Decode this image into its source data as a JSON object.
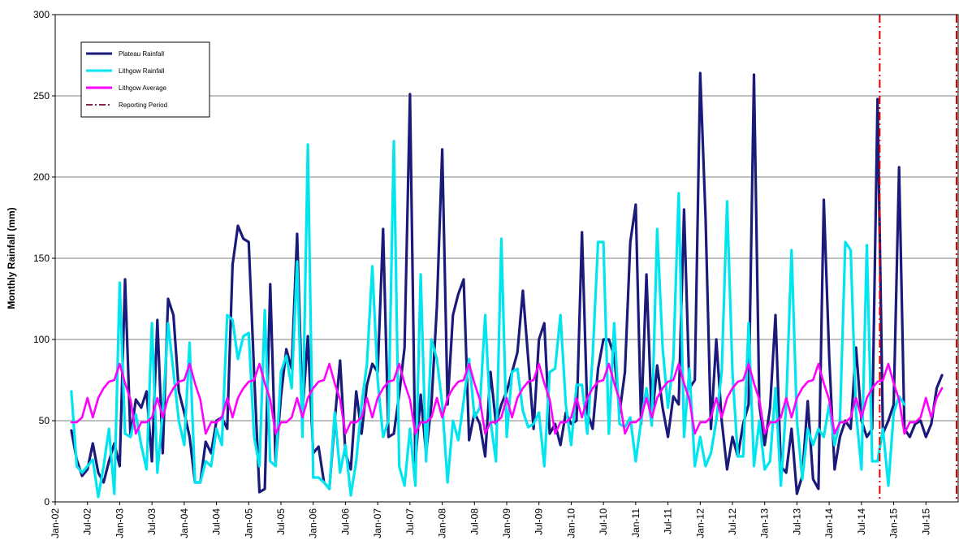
{
  "chart_data": {
    "type": "line",
    "title": "",
    "xlabel": "",
    "ylabel": "Monthly Rainfall (mm)",
    "ylim": [
      0,
      300
    ],
    "y_ticks": [
      0,
      50,
      100,
      150,
      200,
      250,
      300
    ],
    "x_tick_labels": [
      "Jan-02",
      "Jul-02",
      "Jan-03",
      "Jul-03",
      "Jan-04",
      "Jul-04",
      "Jan-05",
      "Jul-05",
      "Jan-06",
      "Jul-06",
      "Jan-07",
      "Jul-07",
      "Jan-08",
      "Jul-08",
      "Jan-09",
      "Jul-09",
      "Jan-10",
      "Jul-10",
      "Jan-11",
      "Jul-11",
      "Jan-12",
      "Jul-12",
      "Jan-13",
      "Jul-13",
      "Jan-14",
      "Jul-14",
      "Jan-15",
      "Jul-15"
    ],
    "x_start_month": "2002-01",
    "x_end_month": "2015-12",
    "grid": "horizontal",
    "legend_position": "top-left",
    "legend": [
      {
        "label": "Plateau Rainfall",
        "color": "#1a1a7a",
        "style": "solid"
      },
      {
        "label": "Lithgow Rainfall",
        "color": "#00e5ee",
        "style": "solid"
      },
      {
        "label": "Lithgow Average",
        "color": "#ff00ff",
        "style": "solid"
      },
      {
        "label": "Reporting Period",
        "color": "#8b2252",
        "style": "dashdot"
      }
    ],
    "reporting_period": {
      "start": "2014-10",
      "end": "2015-12",
      "color": "#e00000"
    },
    "series": [
      {
        "name": "Plateau Rainfall",
        "color": "#1a1a7a",
        "start_month": "2002-04",
        "values": [
          44,
          26,
          16,
          20,
          36,
          18,
          12,
          25,
          36,
          22,
          137,
          40,
          63,
          58,
          68,
          25,
          112,
          30,
          125,
          115,
          68,
          55,
          40,
          12,
          12,
          37,
          30,
          50,
          52,
          45,
          146,
          170,
          162,
          160,
          80,
          6,
          8,
          134,
          24,
          65,
          94,
          82,
          165,
          55,
          102,
          30,
          34,
          12,
          8,
          50,
          87,
          30,
          20,
          68,
          42,
          72,
          85,
          80,
          168,
          40,
          42,
          66,
          95,
          251,
          24,
          66,
          30,
          60,
          120,
          217,
          60,
          115,
          128,
          137,
          38,
          55,
          48,
          28,
          80,
          48,
          60,
          68,
          80,
          92,
          130,
          88,
          45,
          100,
          110,
          42,
          48,
          35,
          55,
          48,
          50,
          166,
          55,
          45,
          82,
          100,
          100,
          90,
          55,
          80,
          160,
          183,
          48,
          140,
          50,
          84,
          58,
          40,
          65,
          60,
          180,
          70,
          75,
          264,
          175,
          45,
          100,
          50,
          20,
          40,
          28,
          48,
          60,
          263,
          60,
          35,
          58,
          115,
          22,
          18,
          45,
          5,
          16,
          62,
          14,
          8,
          186,
          90,
          20,
          40,
          50,
          45,
          95,
          50,
          40,
          45,
          248,
          42,
          50,
          60,
          206,
          45,
          40,
          48,
          50,
          40,
          48,
          70,
          78
        ]
      },
      {
        "name": "Lithgow Rainfall",
        "color": "#00e5ee",
        "start_month": "2002-04",
        "values": [
          68,
          22,
          18,
          22,
          26,
          3,
          22,
          45,
          5,
          135,
          42,
          40,
          54,
          35,
          20,
          110,
          18,
          55,
          110,
          80,
          50,
          35,
          98,
          12,
          12,
          25,
          22,
          45,
          35,
          115,
          112,
          88,
          102,
          104,
          40,
          22,
          118,
          25,
          22,
          80,
          90,
          70,
          148,
          40,
          220,
          15,
          15,
          12,
          8,
          55,
          18,
          35,
          4,
          25,
          60,
          85,
          145,
          75,
          40,
          50,
          222,
          22,
          10,
          45,
          10,
          140,
          25,
          100,
          88,
          60,
          12,
          50,
          38,
          62,
          88,
          52,
          58,
          115,
          50,
          25,
          162,
          40,
          80,
          82,
          56,
          46,
          48,
          55,
          22,
          80,
          82,
          115,
          60,
          35,
          72,
          72,
          42,
          90,
          160,
          160,
          42,
          110,
          48,
          46,
          52,
          25,
          50,
          70,
          47,
          168,
          95,
          58,
          88,
          190,
          40,
          82,
          22,
          40,
          22,
          30,
          50,
          80,
          185,
          80,
          28,
          28,
          110,
          22,
          50,
          20,
          25,
          70,
          10,
          60,
          155,
          50,
          14,
          45,
          35,
          45,
          40,
          60,
          35,
          50,
          160,
          155,
          55,
          20,
          158,
          25,
          25,
          45,
          10,
          55,
          65,
          60
        ]
      },
      {
        "name": "Lithgow Average",
        "color": "#ff00ff",
        "start_month": "2002-04",
        "period_values": [
          49,
          49,
          52,
          64,
          52,
          64,
          70,
          74,
          75,
          85,
          73,
          63
        ],
        "values": [
          49,
          49,
          52,
          64,
          52,
          64,
          70,
          74,
          75,
          85,
          73,
          63,
          42,
          49,
          49,
          52,
          64,
          52,
          64,
          70,
          74,
          75,
          85,
          73,
          63,
          42,
          49,
          49,
          52,
          64,
          52,
          64,
          70,
          74,
          75,
          85,
          73,
          63,
          42,
          49,
          49,
          52,
          64,
          52,
          64,
          70,
          74,
          75,
          85,
          73,
          63,
          42,
          49,
          49,
          52,
          64,
          52,
          64,
          70,
          74,
          75,
          85,
          73,
          63,
          42,
          49,
          49,
          52,
          64,
          52,
          64,
          70,
          74,
          75,
          85,
          73,
          63,
          42,
          49,
          49,
          52,
          64,
          52,
          64,
          70,
          74,
          75,
          85,
          73,
          63,
          42,
          49,
          49,
          52,
          64,
          52,
          64,
          70,
          74,
          75,
          85,
          73,
          63,
          42,
          49,
          49,
          52,
          64,
          52,
          64,
          70,
          74,
          75,
          85,
          73,
          63,
          42,
          49,
          49,
          52,
          64,
          52,
          64,
          70,
          74,
          75,
          85,
          73,
          63,
          42,
          49,
          49,
          52,
          64,
          52,
          64,
          70,
          74,
          75,
          85,
          73,
          63,
          42,
          49,
          49,
          52,
          64,
          52,
          64,
          70,
          74,
          75,
          85,
          73,
          63,
          42,
          49,
          49,
          52,
          64,
          52,
          64,
          70
        ]
      }
    ]
  }
}
